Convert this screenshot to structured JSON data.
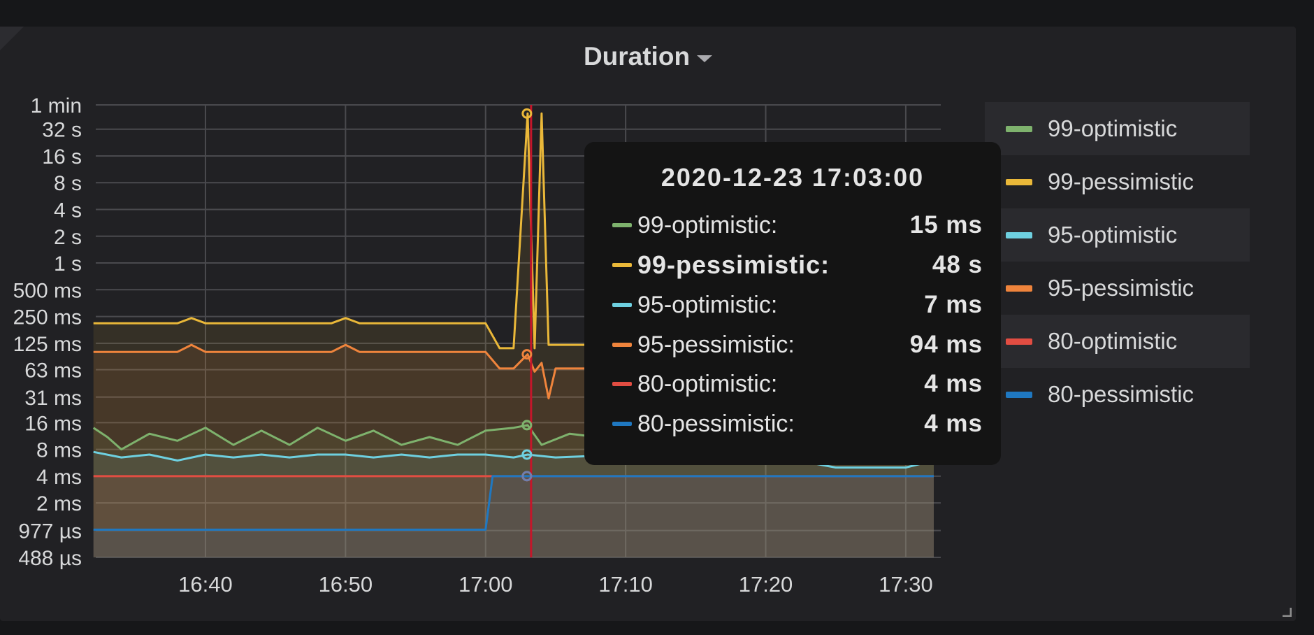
{
  "panel": {
    "title": "Duration"
  },
  "chart_data": {
    "type": "line",
    "title": "Duration",
    "y_scale": "log2",
    "y_ticks": [
      "1 min",
      "32 s",
      "16 s",
      "8 s",
      "4 s",
      "2 s",
      "1 s",
      "500 ms",
      "250 ms",
      "125 ms",
      "63 ms",
      "31 ms",
      "16 ms",
      "8 ms",
      "4 ms",
      "2 ms",
      "977 µs",
      "488 µs"
    ],
    "y_tick_seconds": [
      60,
      32,
      16,
      8,
      4,
      2,
      1,
      0.5,
      0.25,
      0.125,
      0.063,
      0.031,
      0.016,
      0.008,
      0.004,
      0.002,
      0.000977,
      0.000488
    ],
    "x_ticks": [
      "16:40",
      "16:50",
      "17:00",
      "17:10",
      "17:20",
      "17:30"
    ],
    "x_range": [
      "16:32:10",
      "17:32:30"
    ],
    "grid": true,
    "legend_position": "right",
    "crosshair_time": "17:03:00",
    "series": [
      {
        "name": "99-optimistic",
        "color": "#7eb26d",
        "points": [
          [
            "16:32",
            "14 ms"
          ],
          [
            "16:33",
            "11 ms"
          ],
          [
            "16:34",
            "8 ms"
          ],
          [
            "16:36",
            "12 ms"
          ],
          [
            "16:38",
            "10 ms"
          ],
          [
            "16:40",
            "14 ms"
          ],
          [
            "16:42",
            "9 ms"
          ],
          [
            "16:44",
            "13 ms"
          ],
          [
            "16:46",
            "9 ms"
          ],
          [
            "16:48",
            "14 ms"
          ],
          [
            "16:50",
            "10 ms"
          ],
          [
            "16:52",
            "13 ms"
          ],
          [
            "16:54",
            "9 ms"
          ],
          [
            "16:56",
            "11 ms"
          ],
          [
            "16:58",
            "9 ms"
          ],
          [
            "17:00",
            "13 ms"
          ],
          [
            "17:02",
            "14 ms"
          ],
          [
            "17:03",
            "15 ms"
          ],
          [
            "17:04",
            "9 ms"
          ],
          [
            "17:06",
            "12 ms"
          ],
          [
            "17:08",
            "11 ms"
          ],
          [
            "17:10",
            "11 ms"
          ],
          [
            "17:15",
            "11 ms"
          ],
          [
            "17:20",
            "11 ms"
          ],
          [
            "17:25",
            "11 ms"
          ],
          [
            "17:30",
            "11 ms"
          ],
          [
            "17:32",
            "11 ms"
          ]
        ]
      },
      {
        "name": "99-pessimistic",
        "color": "#eab839",
        "points": [
          [
            "16:32",
            "210 ms"
          ],
          [
            "16:38",
            "210 ms"
          ],
          [
            "16:39",
            "240 ms"
          ],
          [
            "16:40",
            "210 ms"
          ],
          [
            "16:49",
            "210 ms"
          ],
          [
            "16:50",
            "240 ms"
          ],
          [
            "16:51",
            "210 ms"
          ],
          [
            "17:00",
            "210 ms"
          ],
          [
            "17:01",
            "110 ms"
          ],
          [
            "17:02",
            "110 ms"
          ],
          [
            "17:03",
            "48 s"
          ],
          [
            "17:03:30",
            "110 ms"
          ],
          [
            "17:04",
            "48 s"
          ],
          [
            "17:04:30",
            "120 ms"
          ],
          [
            "17:10",
            "120 ms"
          ],
          [
            "17:32",
            "120 ms"
          ]
        ]
      },
      {
        "name": "95-optimistic",
        "color": "#6ed0e0",
        "points": [
          [
            "16:32",
            "7.5 ms"
          ],
          [
            "16:34",
            "6.5 ms"
          ],
          [
            "16:36",
            "7 ms"
          ],
          [
            "16:38",
            "6 ms"
          ],
          [
            "16:40",
            "7 ms"
          ],
          [
            "16:42",
            "6.5 ms"
          ],
          [
            "16:44",
            "7 ms"
          ],
          [
            "16:46",
            "6.5 ms"
          ],
          [
            "16:48",
            "7 ms"
          ],
          [
            "16:50",
            "7 ms"
          ],
          [
            "16:52",
            "6.5 ms"
          ],
          [
            "16:54",
            "7 ms"
          ],
          [
            "16:56",
            "6.5 ms"
          ],
          [
            "16:58",
            "7 ms"
          ],
          [
            "17:00",
            "7 ms"
          ],
          [
            "17:02",
            "6.5 ms"
          ],
          [
            "17:03",
            "7 ms"
          ],
          [
            "17:05",
            "6.5 ms"
          ],
          [
            "17:10",
            "7 ms"
          ],
          [
            "17:20",
            "7 ms"
          ],
          [
            "17:25",
            "5 ms"
          ],
          [
            "17:30",
            "5 ms"
          ],
          [
            "17:32",
            "6 ms"
          ]
        ]
      },
      {
        "name": "95-pessimistic",
        "color": "#ef843c",
        "points": [
          [
            "16:32",
            "100 ms"
          ],
          [
            "16:38",
            "100 ms"
          ],
          [
            "16:39",
            "120 ms"
          ],
          [
            "16:40",
            "100 ms"
          ],
          [
            "16:49",
            "100 ms"
          ],
          [
            "16:50",
            "120 ms"
          ],
          [
            "16:51",
            "100 ms"
          ],
          [
            "17:00",
            "100 ms"
          ],
          [
            "17:01",
            "65 ms"
          ],
          [
            "17:02",
            "65 ms"
          ],
          [
            "17:03",
            "94 ms"
          ],
          [
            "17:03:30",
            "60 ms"
          ],
          [
            "17:04",
            "75 ms"
          ],
          [
            "17:04:30",
            "30 ms"
          ],
          [
            "17:05",
            "65 ms"
          ],
          [
            "17:10",
            "65 ms"
          ],
          [
            "17:32",
            "65 ms"
          ]
        ]
      },
      {
        "name": "80-optimistic",
        "color": "#e24d42",
        "points": [
          [
            "16:32",
            "4 ms"
          ],
          [
            "16:50",
            "4 ms"
          ],
          [
            "17:00",
            "4 ms"
          ],
          [
            "17:03",
            "4 ms"
          ],
          [
            "17:10",
            "4 ms"
          ],
          [
            "17:32",
            "4 ms"
          ]
        ]
      },
      {
        "name": "80-pessimistic",
        "color": "#1f78c1",
        "points": [
          [
            "16:32",
            "1 ms"
          ],
          [
            "16:40",
            "1 ms"
          ],
          [
            "16:50",
            "1 ms"
          ],
          [
            "17:00",
            "1 ms"
          ],
          [
            "17:00:30",
            "4 ms"
          ],
          [
            "17:03",
            "4 ms"
          ],
          [
            "17:10",
            "4 ms"
          ],
          [
            "17:20",
            "4 ms"
          ],
          [
            "17:32",
            "4 ms"
          ]
        ]
      }
    ]
  },
  "tooltip": {
    "time": "2020-12-23 17:03:00",
    "rows": [
      {
        "name": "99-optimistic:",
        "value": "15 ms",
        "color": "#7eb26d"
      },
      {
        "name": "99-pessimistic:",
        "value": "48 s",
        "color": "#eab839"
      },
      {
        "name": "95-optimistic:",
        "value": "7 ms",
        "color": "#6ed0e0"
      },
      {
        "name": "95-pessimistic:",
        "value": "94 ms",
        "color": "#ef843c"
      },
      {
        "name": "80-optimistic:",
        "value": "4 ms",
        "color": "#e24d42"
      },
      {
        "name": "80-pessimistic:",
        "value": "4 ms",
        "color": "#1f78c1"
      }
    ]
  },
  "legend": {
    "items": [
      {
        "label": "99-optimistic",
        "color": "#7eb26d"
      },
      {
        "label": "99-pessimistic",
        "color": "#eab839"
      },
      {
        "label": "95-optimistic",
        "color": "#6ed0e0"
      },
      {
        "label": "95-pessimistic",
        "color": "#ef843c"
      },
      {
        "label": "80-optimistic",
        "color": "#e24d42"
      },
      {
        "label": "80-pessimistic",
        "color": "#1f78c1"
      }
    ]
  }
}
